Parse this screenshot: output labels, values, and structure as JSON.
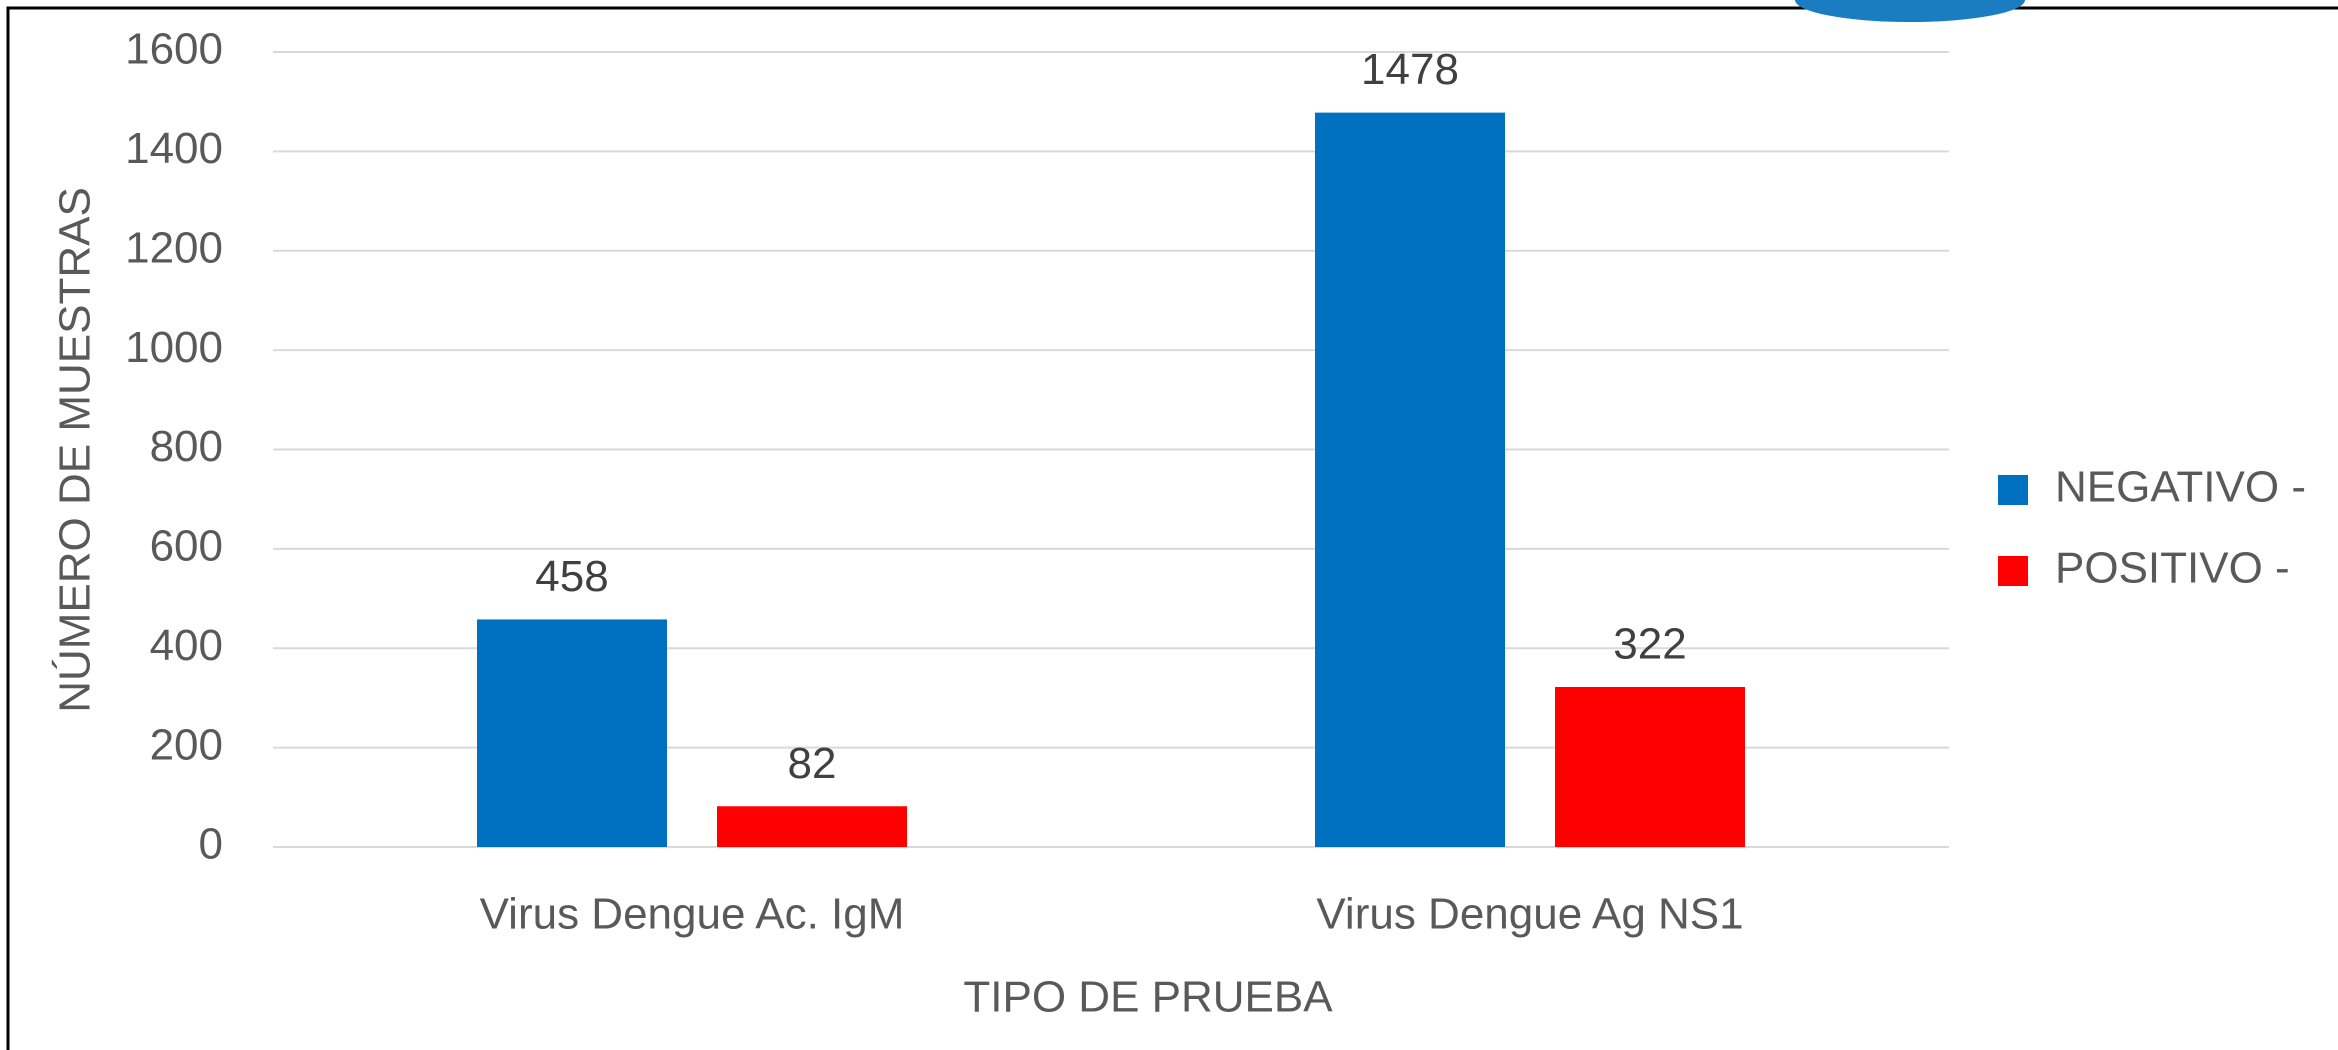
{
  "chart_data": {
    "type": "bar",
    "categories": [
      "Virus Dengue Ac. IgM",
      "Virus Dengue Ag NS1"
    ],
    "series": [
      {
        "name": "NEGATIVO -",
        "color": "#0070c0",
        "values": [
          458,
          1478
        ]
      },
      {
        "name": "POSITIVO -",
        "color": "#ff0000",
        "values": [
          82,
          322
        ]
      }
    ],
    "xlabel": "TIPO DE PRUEBA",
    "ylabel": "NÚMERO DE MUESTRAS",
    "ylim": [
      0,
      1600
    ],
    "yticks": [
      0,
      200,
      400,
      600,
      800,
      1000,
      1200,
      1400,
      1600
    ],
    "grid": true,
    "legend": "right"
  }
}
